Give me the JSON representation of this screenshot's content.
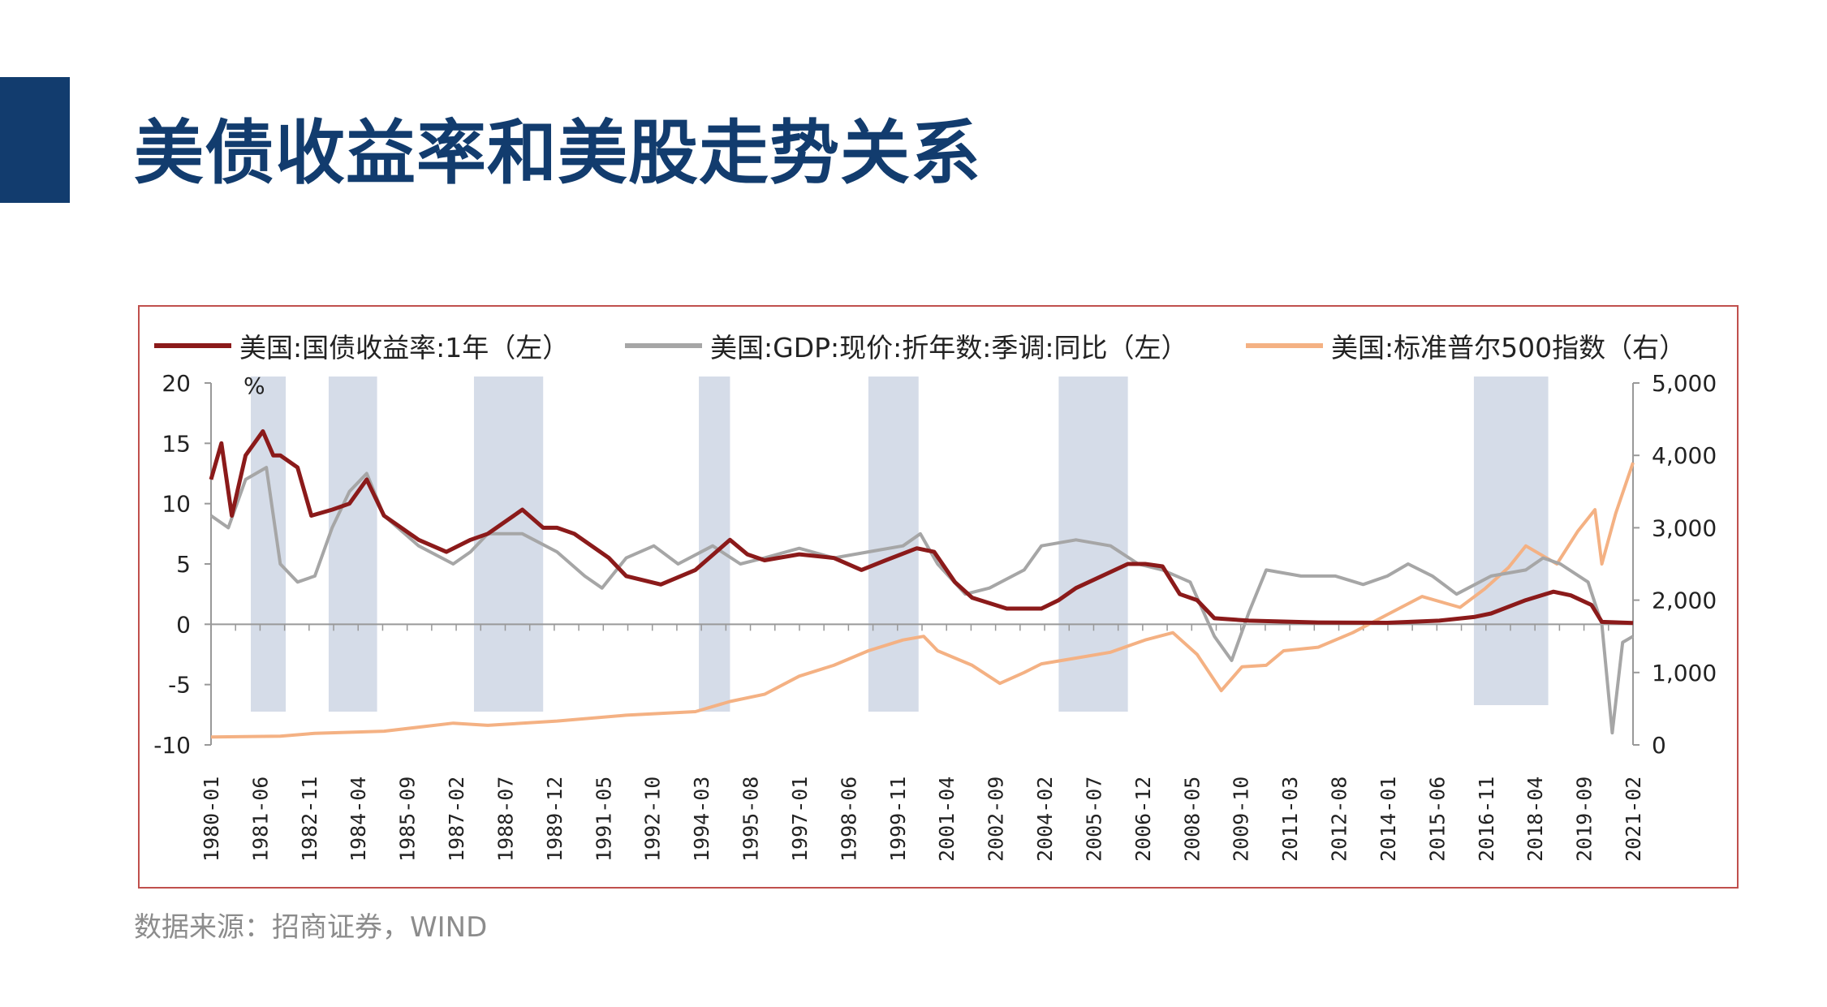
{
  "title": "美债收益率和美股走势关系",
  "source": "数据来源：招商证券，WIND",
  "chart_data": {
    "type": "line",
    "title": "",
    "left_unit": "%",
    "ylim_left": [
      -10,
      20
    ],
    "ylim_right": [
      0,
      5000
    ],
    "yticks_left": [
      "20",
      "15",
      "10",
      "5",
      "0",
      "-5",
      "-10"
    ],
    "yticks_left_values": [
      20,
      15,
      10,
      5,
      0,
      -5,
      -10
    ],
    "yticks_right": [
      "5,000",
      "4,000",
      "3,000",
      "2,000",
      "1,000",
      "0"
    ],
    "yticks_right_values": [
      5000,
      4000,
      3000,
      2000,
      1000,
      0
    ],
    "xlim": [
      1980.0,
      2021.1
    ],
    "xticks": [
      "1980-01",
      "1981-06",
      "1982-11",
      "1984-04",
      "1985-09",
      "1987-02",
      "1988-07",
      "1989-12",
      "1991-05",
      "1992-10",
      "1994-03",
      "1995-08",
      "1997-01",
      "1998-06",
      "1999-11",
      "2001-04",
      "2002-09",
      "2004-02",
      "2005-07",
      "2006-12",
      "2008-05",
      "2009-10",
      "2011-03",
      "2012-08",
      "2014-01",
      "2015-06",
      "2016-11",
      "2018-04",
      "2019-09",
      "2021-02"
    ],
    "legend_position": "top",
    "shaded_periods": [
      [
        1981.15,
        1982.16
      ],
      [
        1983.4,
        1984.8
      ],
      [
        1987.6,
        1989.6
      ],
      [
        1994.1,
        1995.0
      ],
      [
        1999.0,
        2000.45
      ],
      [
        2004.5,
        2006.5
      ],
      [
        2016.5,
        2018.65
      ]
    ],
    "shade_color": "#d5dce8",
    "series": [
      {
        "name": "美国:国债收益率:1年（左）",
        "axis": "left",
        "color": "#8b1a1a",
        "x": [
          1980,
          1980.3,
          1980.6,
          1981,
          1981.5,
          1981.8,
          1982,
          1982.5,
          1982.9,
          1983.5,
          1984,
          1984.5,
          1985,
          1985.5,
          1986,
          1986.8,
          1987.5,
          1988,
          1989,
          1989.6,
          1990,
          1990.5,
          1991,
          1991.5,
          1992,
          1993,
          1994,
          1994.6,
          1995,
          1995.5,
          1996,
          1997,
          1998,
          1998.8,
          1999.5,
          2000.4,
          2000.9,
          2001.5,
          2002,
          2003,
          2004,
          2004.5,
          2005,
          2006.5,
          2007,
          2007.5,
          2008,
          2008.5,
          2009,
          2010,
          2012,
          2014,
          2015.5,
          2016.5,
          2017,
          2018,
          2018.8,
          2019.3,
          2019.9,
          2020.2,
          2021.1
        ],
        "y": [
          12,
          15,
          9,
          14,
          16,
          14,
          14,
          13,
          9,
          9.5,
          10,
          12,
          9,
          8,
          7,
          6,
          7,
          7.5,
          9.5,
          8,
          8,
          7.5,
          6.5,
          5.5,
          4,
          3.3,
          4.5,
          6,
          7,
          5.8,
          5.3,
          5.8,
          5.5,
          4.5,
          5.3,
          6.3,
          6,
          3.5,
          2.2,
          1.3,
          1.3,
          2,
          3,
          5,
          5,
          4.8,
          2.5,
          2,
          0.5,
          0.3,
          0.15,
          0.12,
          0.3,
          0.6,
          0.9,
          2,
          2.7,
          2.4,
          1.6,
          0.2,
          0.1
        ]
      },
      {
        "name": "美国:GDP:现价:折年数:季调:同比（左）",
        "axis": "left",
        "color": "#a6a6a6",
        "x": [
          1980,
          1980.5,
          1981,
          1981.6,
          1982,
          1982.5,
          1983,
          1983.5,
          1984,
          1984.5,
          1985,
          1986,
          1987,
          1987.5,
          1988,
          1989,
          1990,
          1990.8,
          1991.3,
          1992,
          1992.8,
          1993.5,
          1994.5,
          1995.3,
          1996,
          1997,
          1998,
          1999,
          2000,
          2000.5,
          2001,
          2001.8,
          2002.5,
          2003.5,
          2004,
          2005,
          2006,
          2006.8,
          2007.5,
          2008.3,
          2009,
          2009.5,
          2010,
          2010.5,
          2011.5,
          2012.5,
          2013.3,
          2014,
          2014.6,
          2015.3,
          2016,
          2017,
          2018,
          2018.5,
          2019,
          2019.8,
          2020.2,
          2020.5,
          2020.8,
          2021.1
        ],
        "y": [
          9,
          8,
          12,
          13,
          5,
          3.5,
          4,
          8,
          11,
          12.5,
          9,
          6.5,
          5,
          6,
          7.5,
          7.5,
          6,
          4,
          3,
          5.5,
          6.5,
          5,
          6.5,
          5,
          5.5,
          6.3,
          5.5,
          6,
          6.5,
          7.5,
          5,
          2.5,
          3,
          4.5,
          6.5,
          7,
          6.5,
          5,
          4.5,
          3.5,
          -1,
          -3,
          1,
          4.5,
          4,
          4,
          3.3,
          4,
          5,
          4,
          2.5,
          4,
          4.5,
          5.5,
          5,
          3.5,
          0,
          -9,
          -1.5,
          -1
        ]
      },
      {
        "name": "美国:标准普尔500指数（右）",
        "axis": "right",
        "color": "#f4b183",
        "x": [
          1980,
          1982,
          1983,
          1985,
          1987,
          1988,
          1990,
          1992,
          1994,
          1995,
          1996,
          1997,
          1998,
          1999,
          2000,
          2000.6,
          2001,
          2002,
          2002.8,
          2003.5,
          2004,
          2005,
          2006,
          2007,
          2007.8,
          2008.5,
          2009.2,
          2009.8,
          2010.5,
          2011,
          2012,
          2013,
          2014,
          2015,
          2016.1,
          2016.8,
          2017.5,
          2018,
          2018.9,
          2019.5,
          2020,
          2020.2,
          2020.6,
          2021.1
        ],
        "y": [
          110,
          120,
          160,
          190,
          300,
          270,
          330,
          410,
          460,
          600,
          700,
          950,
          1100,
          1300,
          1450,
          1500,
          1300,
          1100,
          850,
          1000,
          1120,
          1200,
          1280,
          1450,
          1550,
          1250,
          750,
          1080,
          1100,
          1300,
          1350,
          1550,
          1800,
          2050,
          1900,
          2150,
          2450,
          2750,
          2500,
          2950,
          3250,
          2500,
          3200,
          3900
        ]
      }
    ]
  }
}
